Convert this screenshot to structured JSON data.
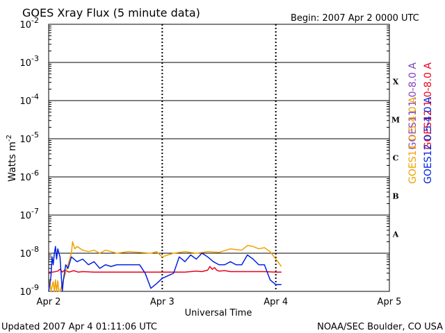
{
  "header": {
    "title": "GOES Xray Flux (5 minute data)",
    "begin": "Begin:  2007 Apr 2 0000 UTC"
  },
  "footer": {
    "updated": "Updated 2007 Apr  4 01:11:06 UTC",
    "credit": "NOAA/SEC Boulder, CO USA"
  },
  "chart_data": {
    "type": "line",
    "title": "GOES Xray Flux (5 minute data)",
    "xlabel": "Universal Time",
    "ylabel": "Watts m",
    "ylabel_sup": "-2",
    "y_scale": "log",
    "ylim": [
      1e-09,
      0.01
    ],
    "xlim": [
      0,
      3
    ],
    "x_unit": "days since 2007 Apr 2 0000 UTC",
    "x_ticks": [
      {
        "value": 0,
        "label": "Apr 2"
      },
      {
        "value": 1,
        "label": "Apr 3"
      },
      {
        "value": 2,
        "label": "Apr 4"
      },
      {
        "value": 3,
        "label": "Apr 5"
      }
    ],
    "y_ticks": [
      {
        "exp": -2,
        "base": "10",
        "sup": "-2"
      },
      {
        "exp": -3,
        "base": "10",
        "sup": "-3"
      },
      {
        "exp": -4,
        "base": "10",
        "sup": "-4"
      },
      {
        "exp": -5,
        "base": "10",
        "sup": "-5"
      },
      {
        "exp": -6,
        "base": "10",
        "sup": "-6"
      },
      {
        "exp": -7,
        "base": "10",
        "sup": "-7"
      },
      {
        "exp": -8,
        "base": "10",
        "sup": "-8"
      },
      {
        "exp": -9,
        "base": "10",
        "sup": "-9"
      }
    ],
    "flare_classes": [
      {
        "label": "X",
        "exp": -4
      },
      {
        "label": "M",
        "exp": -5
      },
      {
        "label": "C",
        "exp": -6
      },
      {
        "label": "B",
        "exp": -7
      },
      {
        "label": "A",
        "exp": -8
      }
    ],
    "grid": "horizontal at each decade, dashed vertical at day boundaries",
    "legend": [
      {
        "name": "GOES11 1.0-8.0 A",
        "color": "#7f3fbf"
      },
      {
        "name": "GOES12 1.0-8.0 A",
        "color": "#e8001c"
      },
      {
        "name": "GOES11 0.5-4.0 A",
        "color": "#f0a000"
      },
      {
        "name": "GOES12 0.5-4.0 A",
        "color": "#0020e0"
      }
    ],
    "series": [
      {
        "name": "GOES12 1.0-8.0 A",
        "color": "#e8001c",
        "x": [
          0.0,
          0.04,
          0.08,
          0.1,
          0.12,
          0.14,
          0.18,
          0.22,
          0.26,
          0.3,
          0.4,
          0.5,
          0.6,
          0.7,
          0.8,
          0.9,
          1.0,
          1.1,
          1.2,
          1.3,
          1.35,
          1.4,
          1.42,
          1.44,
          1.46,
          1.48,
          1.5,
          1.55,
          1.6,
          1.7,
          1.8,
          1.85,
          1.9,
          2.0,
          2.05
        ],
        "y": [
          3.2e-09,
          3.2e-09,
          3.4e-09,
          3.8e-09,
          3.2e-09,
          3.6e-09,
          3.2e-09,
          3.5e-09,
          3.2e-09,
          3.3e-09,
          3.2e-09,
          3.2e-09,
          3.2e-09,
          3.2e-09,
          3.2e-09,
          3.2e-09,
          3.2e-09,
          3.2e-09,
          3.2e-09,
          3.4e-09,
          3.3e-09,
          3.6e-09,
          4.5e-09,
          3.8e-09,
          4.2e-09,
          3.6e-09,
          3.4e-09,
          3.5e-09,
          3.3e-09,
          3.3e-09,
          3.3e-09,
          3.3e-09,
          3.3e-09,
          3.2e-09,
          3.2e-09
        ]
      },
      {
        "name": "GOES11 0.5-4.0 A",
        "color": "#f0a000",
        "x": [
          0.0,
          0.01,
          0.02,
          0.04,
          0.05,
          0.06,
          0.07,
          0.08,
          0.09,
          0.1,
          0.2,
          0.21,
          0.23,
          0.25,
          0.3,
          0.35,
          0.4,
          0.45,
          0.5,
          0.55,
          0.6,
          0.7,
          0.8,
          0.9,
          0.95,
          1.0,
          1.05,
          1.1,
          1.2,
          1.3,
          1.4,
          1.5,
          1.6,
          1.7,
          1.75,
          1.8,
          1.85,
          1.9,
          1.95,
          2.0,
          2.05
        ],
        "y": [
          1e-09,
          2e-09,
          1e-09,
          1.8e-09,
          1e-09,
          2e-09,
          1e-09,
          1.9e-09,
          1e-09,
          1e-09,
          1e-08,
          2e-08,
          1.3e-08,
          1.5e-08,
          1.2e-08,
          1.1e-08,
          1.2e-08,
          1e-08,
          1.2e-08,
          1.1e-08,
          1e-08,
          1.1e-08,
          1.05e-08,
          1e-08,
          1.1e-08,
          8e-09,
          9e-09,
          1e-08,
          1.1e-08,
          1e-08,
          1.1e-08,
          1.05e-08,
          1.3e-08,
          1.2e-08,
          1.6e-08,
          1.5e-08,
          1.3e-08,
          1.4e-08,
          1.1e-08,
          7e-09,
          4.5e-09
        ]
      },
      {
        "name": "GOES12 0.5-4.0 A",
        "color": "#0020e0",
        "x": [
          0.0,
          0.02,
          0.03,
          0.04,
          0.05,
          0.06,
          0.07,
          0.08,
          0.1,
          0.12,
          0.13,
          0.15,
          0.17,
          0.2,
          0.25,
          0.3,
          0.35,
          0.4,
          0.45,
          0.5,
          0.55,
          0.6,
          0.7,
          0.8,
          0.85,
          0.9,
          0.95,
          1.0,
          1.1,
          1.15,
          1.2,
          1.25,
          1.3,
          1.35,
          1.4,
          1.45,
          1.5,
          1.55,
          1.6,
          1.65,
          1.7,
          1.75,
          1.8,
          1.85,
          1.9,
          1.95,
          2.0,
          2.05
        ],
        "y": [
          1e-09,
          2.5e-09,
          8e-09,
          5e-09,
          1e-08,
          1.5e-08,
          7e-09,
          1.3e-08,
          8e-09,
          1e-09,
          2e-09,
          5e-09,
          4e-09,
          8e-09,
          6e-09,
          7e-09,
          5e-09,
          6e-09,
          4e-09,
          5e-09,
          4.5e-09,
          5e-09,
          5e-09,
          5e-09,
          3e-09,
          1.2e-09,
          1.6e-09,
          2.2e-09,
          3e-09,
          8e-09,
          6e-09,
          9e-09,
          7e-09,
          1e-08,
          8e-09,
          6e-09,
          5e-09,
          5e-09,
          6e-09,
          5e-09,
          5e-09,
          9e-09,
          7e-09,
          5e-09,
          5e-09,
          2e-09,
          1.5e-09,
          1.5e-09
        ]
      }
    ]
  }
}
